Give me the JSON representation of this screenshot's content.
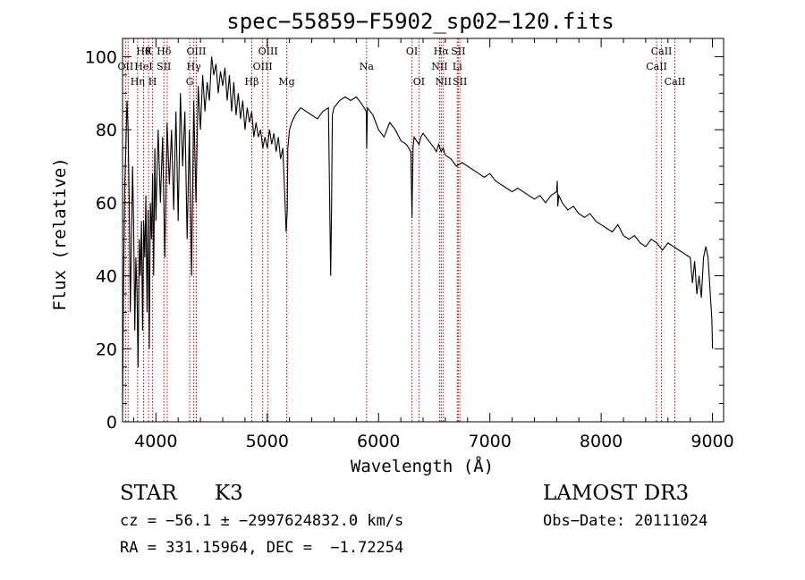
{
  "chart_data": {
    "type": "line",
    "title": "spec−55859−F5902_sp02−120.fits",
    "xlabel": "Wavelength (Å)",
    "ylabel": "Flux (relative)",
    "xlim": [
      3700,
      9100
    ],
    "ylim": [
      0,
      105
    ],
    "xticks": [
      {
        "value": 4000,
        "label": "4000"
      },
      {
        "value": 5000,
        "label": "5000"
      },
      {
        "value": 6000,
        "label": "6000"
      },
      {
        "value": 7000,
        "label": "7000"
      },
      {
        "value": 8000,
        "label": "8000"
      },
      {
        "value": 9000,
        "label": "9000"
      }
    ],
    "yticks": [
      {
        "value": 0,
        "label": "0"
      },
      {
        "value": 20,
        "label": "20"
      },
      {
        "value": 40,
        "label": "40"
      },
      {
        "value": 60,
        "label": "60"
      },
      {
        "value": 80,
        "label": "80"
      },
      {
        "value": 100,
        "label": "100"
      }
    ],
    "series": [
      {
        "name": "flux",
        "color": "#000000",
        "x": [
          3700,
          3710,
          3720,
          3730,
          3740,
          3750,
          3760,
          3770,
          3780,
          3790,
          3800,
          3810,
          3820,
          3830,
          3840,
          3850,
          3860,
          3870,
          3880,
          3890,
          3900,
          3910,
          3920,
          3930,
          3940,
          3950,
          3960,
          3970,
          3980,
          3990,
          4000,
          4020,
          4040,
          4060,
          4080,
          4100,
          4120,
          4140,
          4160,
          4180,
          4200,
          4220,
          4240,
          4260,
          4280,
          4300,
          4320,
          4340,
          4360,
          4380,
          4400,
          4420,
          4440,
          4460,
          4480,
          4500,
          4520,
          4540,
          4560,
          4580,
          4600,
          4620,
          4640,
          4660,
          4680,
          4700,
          4720,
          4740,
          4760,
          4780,
          4800,
          4820,
          4840,
          4860,
          4880,
          4900,
          4920,
          4940,
          4960,
          4980,
          5000,
          5020,
          5040,
          5060,
          5080,
          5100,
          5120,
          5140,
          5160,
          5170,
          5180,
          5185,
          5200,
          5220,
          5250,
          5300,
          5350,
          5400,
          5450,
          5500,
          5550,
          5570,
          5577,
          5585,
          5600,
          5650,
          5700,
          5750,
          5800,
          5850,
          5890,
          5894,
          5900,
          5950,
          6000,
          6050,
          6100,
          6150,
          6200,
          6250,
          6290,
          6300,
          6310,
          6320,
          6340,
          6364,
          6380,
          6400,
          6450,
          6500,
          6520,
          6540,
          6563,
          6580,
          6600,
          6650,
          6700,
          6750,
          6800,
          6850,
          6900,
          6950,
          7000,
          7050,
          7100,
          7150,
          7200,
          7250,
          7300,
          7350,
          7400,
          7450,
          7500,
          7550,
          7600,
          7605,
          7610,
          7620,
          7650,
          7700,
          7750,
          7800,
          7850,
          7900,
          7950,
          8000,
          8050,
          8100,
          8150,
          8200,
          8250,
          8300,
          8350,
          8400,
          8450,
          8500,
          8550,
          8600,
          8650,
          8700,
          8750,
          8800,
          8820,
          8840,
          8860,
          8880,
          8900,
          8920,
          8940,
          8960,
          8980,
          8995,
          9000
        ],
        "values": [
          3,
          40,
          65,
          75,
          88,
          80,
          60,
          30,
          50,
          70,
          55,
          25,
          45,
          35,
          15,
          50,
          40,
          55,
          25,
          55,
          45,
          62,
          30,
          58,
          20,
          60,
          50,
          68,
          40,
          75,
          55,
          80,
          60,
          78,
          45,
          82,
          65,
          80,
          58,
          85,
          55,
          90,
          70,
          85,
          50,
          80,
          40,
          88,
          60,
          92,
          80,
          95,
          85,
          93,
          88,
          100,
          95,
          98,
          90,
          96,
          92,
          97,
          88,
          95,
          85,
          93,
          84,
          90,
          83,
          88,
          80,
          86,
          82,
          85,
          78,
          82,
          78,
          80,
          75,
          78,
          75,
          80,
          76,
          79,
          74,
          78,
          72,
          75,
          60,
          52,
          58,
          75,
          80,
          82,
          84,
          86,
          85,
          84,
          83,
          85,
          86,
          40,
          57,
          84,
          86,
          88,
          89,
          88,
          89,
          87,
          85,
          75,
          86,
          84,
          80,
          78,
          82,
          80,
          77,
          76,
          74,
          56,
          75,
          78,
          77,
          76,
          78,
          79,
          77,
          75,
          74,
          76,
          74,
          75,
          73,
          72,
          70,
          71,
          70,
          69,
          68,
          67,
          68,
          66,
          65,
          64,
          63,
          64,
          63,
          62,
          61,
          62,
          60,
          62,
          63,
          66,
          59,
          62,
          60,
          58,
          59,
          57,
          56,
          57,
          55,
          54,
          53,
          52,
          54,
          51,
          50,
          51,
          49,
          48,
          50,
          49,
          47,
          49,
          48,
          47,
          46,
          45,
          38,
          44,
          35,
          40,
          34,
          45,
          48,
          45,
          35,
          28,
          20
        ]
      }
    ],
    "lines": [
      {
        "wave": 3727,
        "labels": [
          "OII"
        ],
        "rows": [
          2
        ]
      },
      {
        "wave": 3750,
        "labels": [
          ""
        ],
        "rows": []
      },
      {
        "wave": 3835,
        "labels": [
          "Hη"
        ],
        "rows": [
          3
        ]
      },
      {
        "wave": 3889,
        "labels": [
          "Hθ",
          "HeI"
        ],
        "rows": [
          1,
          2
        ]
      },
      {
        "wave": 3934,
        "labels": [
          "K"
        ],
        "rows": [
          1
        ]
      },
      {
        "wave": 3970,
        "labels": [
          "H"
        ],
        "rows": [
          3
        ]
      },
      {
        "wave": 4072,
        "labels": [
          "Hδ",
          "SII"
        ],
        "rows": [
          1,
          2
        ]
      },
      {
        "wave": 4101,
        "labels": [
          ""
        ],
        "rows": []
      },
      {
        "wave": 4304,
        "labels": [
          "G"
        ],
        "rows": [
          3
        ]
      },
      {
        "wave": 4340,
        "labels": [
          "Hγ"
        ],
        "rows": [
          2
        ]
      },
      {
        "wave": 4363,
        "labels": [
          "OIII"
        ],
        "rows": [
          1
        ]
      },
      {
        "wave": 4861,
        "labels": [
          "Hβ"
        ],
        "rows": [
          3
        ]
      },
      {
        "wave": 4959,
        "labels": [
          "OIII"
        ],
        "rows": [
          2
        ]
      },
      {
        "wave": 5007,
        "labels": [
          "OIII"
        ],
        "rows": [
          1
        ]
      },
      {
        "wave": 5175,
        "labels": [
          "Mg"
        ],
        "rows": [
          3
        ]
      },
      {
        "wave": 5892,
        "labels": [
          "Na"
        ],
        "rows": [
          2
        ]
      },
      {
        "wave": 6300,
        "labels": [
          "OI"
        ],
        "rows": [
          1
        ]
      },
      {
        "wave": 6363,
        "labels": [
          "OI"
        ],
        "rows": [
          3
        ]
      },
      {
        "wave": 6548,
        "labels": [
          "NII"
        ],
        "rows": [
          2
        ]
      },
      {
        "wave": 6563,
        "labels": [
          "Hα"
        ],
        "rows": [
          1
        ]
      },
      {
        "wave": 6583,
        "labels": [
          "NII"
        ],
        "rows": [
          3
        ]
      },
      {
        "wave": 6708,
        "labels": [
          "Li"
        ],
        "rows": [
          2
        ]
      },
      {
        "wave": 6716,
        "labels": [
          "SII"
        ],
        "rows": [
          1
        ]
      },
      {
        "wave": 6731,
        "labels": [
          "SII"
        ],
        "rows": [
          3
        ]
      },
      {
        "wave": 8498,
        "labels": [
          "CaII"
        ],
        "rows": [
          2
        ]
      },
      {
        "wave": 8542,
        "labels": [
          "CaII"
        ],
        "rows": [
          1
        ]
      },
      {
        "wave": 8662,
        "labels": [
          "CaII"
        ],
        "rows": [
          3
        ]
      }
    ],
    "line_color": "#cc0000"
  },
  "info": {
    "class": "STAR",
    "subclass": "K3",
    "survey": "LAMOST DR3",
    "cz": "cz = −56.1 ± −2997624832.0 km/s",
    "obs_date": "Obs−Date: 20111024",
    "radec": "RA = 331.15964, DEC =  −1.72254"
  }
}
